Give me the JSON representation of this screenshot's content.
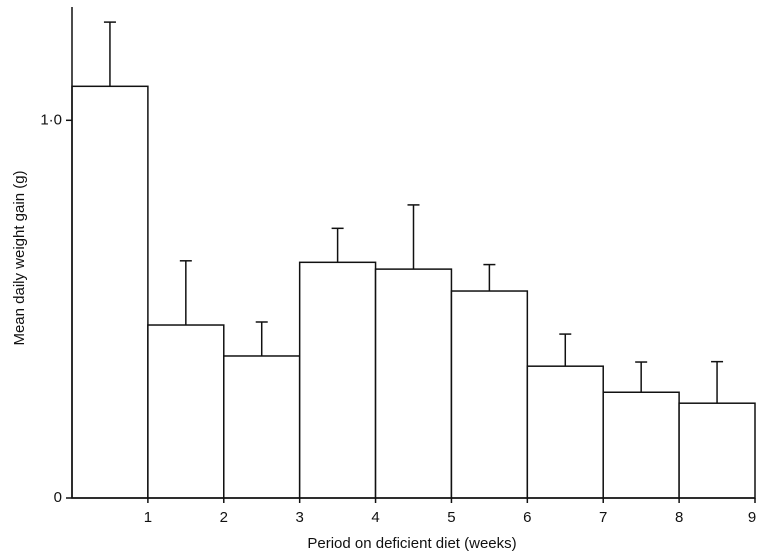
{
  "chart_data": {
    "type": "histogram",
    "x_label": "Period on deficient diet (weeks)",
    "y_label": "Mean daily weight gain (g)",
    "bins": [
      0,
      1,
      2,
      3,
      4,
      5,
      6,
      7,
      8,
      9
    ],
    "values": [
      1.09,
      0.458,
      0.376,
      0.624,
      0.606,
      0.548,
      0.349,
      0.28,
      0.251
    ],
    "errors": [
      0.17,
      0.17,
      0.09,
      0.09,
      0.17,
      0.07,
      0.085,
      0.08,
      0.11
    ],
    "color": "#ffffff",
    "xlim": [
      0,
      9
    ],
    "xticks": [
      1,
      2,
      3,
      4,
      5,
      6,
      7,
      8,
      9
    ],
    "ylim": [
      0,
      1.3
    ],
    "yticks": [
      0,
      {
        "value": 1,
        "label": "1·0"
      }
    ],
    "grid": false
  }
}
